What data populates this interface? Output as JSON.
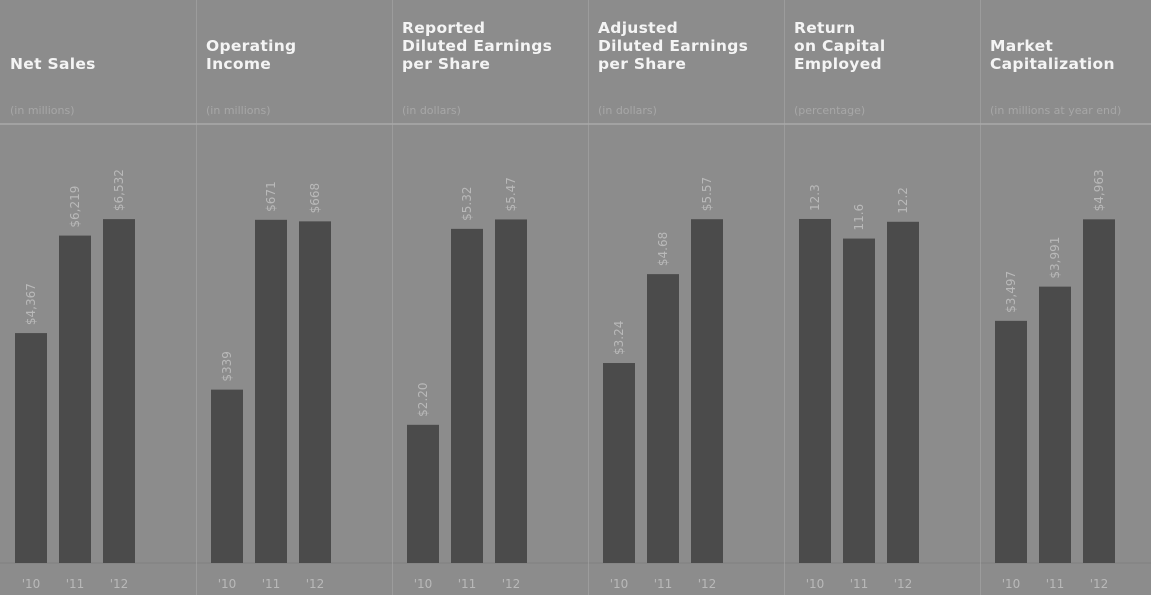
{
  "colors": {
    "background": "#8c8c8c",
    "bar": "#4b4b4b",
    "title": "#f4f4f4",
    "muted_text": "#b9b9b9",
    "divider": "#a9a9a9"
  },
  "chart_data": [
    {
      "type": "bar",
      "title": "Net Sales",
      "unit_label": "(in millions)",
      "categories": [
        "'10",
        "'11",
        "'12"
      ],
      "values": [
        4367,
        6219,
        6532
      ],
      "value_labels": [
        "$4,367",
        "$6,219",
        "$6,532"
      ],
      "ylim": [
        0,
        6800
      ],
      "grid": false
    },
    {
      "type": "bar",
      "title": "Operating\nIncome",
      "unit_label": "(in millions)",
      "categories": [
        "'10",
        "'11",
        "'12"
      ],
      "values": [
        339,
        671,
        668
      ],
      "value_labels": [
        "$339",
        "$671",
        "$668"
      ],
      "ylim": [
        0,
        700
      ],
      "grid": false
    },
    {
      "type": "bar",
      "title": "Reported\nDiluted Earnings\nper Share",
      "unit_label": "(in dollars)",
      "categories": [
        "'10",
        "'11",
        "'12"
      ],
      "values": [
        2.2,
        5.32,
        5.47
      ],
      "value_labels": [
        "$2.20",
        "$5.32",
        "$5.47"
      ],
      "ylim": [
        0,
        5.7
      ],
      "grid": false
    },
    {
      "type": "bar",
      "title": "Adjusted\nDiluted Earnings\nper Share",
      "unit_label": "(in dollars)",
      "categories": [
        "'10",
        "'11",
        "'12"
      ],
      "values": [
        3.24,
        4.68,
        5.57
      ],
      "value_labels": [
        "$3.24",
        "$4.68",
        "$5.57"
      ],
      "ylim": [
        0,
        5.8
      ],
      "grid": false
    },
    {
      "type": "bar",
      "title": "Return\non Capital\nEmployed",
      "unit_label": "(percentage)",
      "categories": [
        "'10",
        "'11",
        "'12"
      ],
      "values": [
        12.3,
        11.6,
        12.2
      ],
      "value_labels": [
        "12.3",
        "11.6",
        "12.2"
      ],
      "ylim": [
        0,
        12.8
      ],
      "grid": false
    },
    {
      "type": "bar",
      "title": "Market\nCapitalization",
      "unit_label": "(in millions at year end)",
      "categories": [
        "'10",
        "'11",
        "'12"
      ],
      "values": [
        3497,
        3991,
        4963
      ],
      "value_labels": [
        "$3,497",
        "$3,991",
        "$4,963"
      ],
      "ylim": [
        0,
        5170
      ],
      "grid": false
    }
  ]
}
